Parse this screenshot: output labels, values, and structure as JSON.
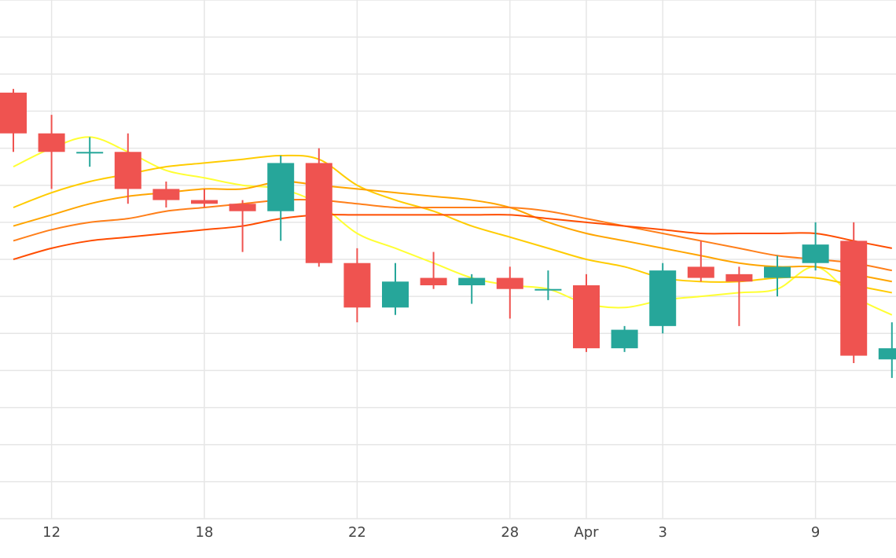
{
  "chart_data": {
    "type": "candlestick",
    "title": "",
    "xlabel": "",
    "ylabel": "",
    "x_ticks": [
      {
        "label": "12",
        "index": 1
      },
      {
        "label": "18",
        "index": 5
      },
      {
        "label": "22",
        "index": 9
      },
      {
        "label": "28",
        "index": 13
      },
      {
        "label": "Apr",
        "index": 15
      },
      {
        "label": "3",
        "index": 17
      },
      {
        "label": "9",
        "index": 21
      }
    ],
    "grid": true,
    "ylim": [
      0,
      14
    ],
    "colors": {
      "up": "#26a69a",
      "down": "#ef5350",
      "grid": "#e6e6e6",
      "ma_lines": [
        "#ffff33",
        "#ffcc00",
        "#ffa500",
        "#ff7f1a",
        "#ff4d00"
      ]
    },
    "candles": [
      {
        "open": 11.5,
        "high": 11.6,
        "low": 9.9,
        "close": 10.4
      },
      {
        "open": 10.4,
        "high": 10.9,
        "low": 8.9,
        "close": 9.9
      },
      {
        "open": 9.9,
        "high": 10.3,
        "low": 9.5,
        "close": 9.9
      },
      {
        "open": 9.9,
        "high": 10.4,
        "low": 8.5,
        "close": 8.9
      },
      {
        "open": 8.9,
        "high": 9.1,
        "low": 8.4,
        "close": 8.6
      },
      {
        "open": 8.6,
        "high": 8.9,
        "low": 8.4,
        "close": 8.5
      },
      {
        "open": 8.5,
        "high": 8.6,
        "low": 7.2,
        "close": 8.3
      },
      {
        "open": 8.3,
        "high": 9.8,
        "low": 7.5,
        "close": 9.6
      },
      {
        "open": 9.6,
        "high": 10.0,
        "low": 6.8,
        "close": 6.9
      },
      {
        "open": 6.9,
        "high": 7.3,
        "low": 5.3,
        "close": 5.7
      },
      {
        "open": 5.7,
        "high": 6.9,
        "low": 5.5,
        "close": 6.4
      },
      {
        "open": 6.5,
        "high": 7.2,
        "low": 6.2,
        "close": 6.3
      },
      {
        "open": 6.3,
        "high": 6.6,
        "low": 5.8,
        "close": 6.5
      },
      {
        "open": 6.5,
        "high": 6.8,
        "low": 5.4,
        "close": 6.2
      },
      {
        "open": 6.2,
        "high": 6.7,
        "low": 5.9,
        "close": 6.2
      },
      {
        "open": 6.3,
        "high": 6.6,
        "low": 4.5,
        "close": 4.6
      },
      {
        "open": 4.6,
        "high": 5.2,
        "low": 4.5,
        "close": 5.1
      },
      {
        "open": 5.2,
        "high": 6.9,
        "low": 5.0,
        "close": 6.7
      },
      {
        "open": 6.8,
        "high": 7.5,
        "low": 6.4,
        "close": 6.5
      },
      {
        "open": 6.6,
        "high": 6.8,
        "low": 5.2,
        "close": 6.4
      },
      {
        "open": 6.5,
        "high": 7.1,
        "low": 6.0,
        "close": 6.8
      },
      {
        "open": 6.9,
        "high": 8.0,
        "low": 6.7,
        "close": 7.4
      },
      {
        "open": 7.5,
        "high": 8.0,
        "low": 4.2,
        "close": 4.4
      },
      {
        "open": 4.3,
        "high": 5.3,
        "low": 3.8,
        "close": 4.6
      }
    ],
    "series": [
      {
        "values": [
          9.5,
          10.0,
          10.3,
          9.9,
          9.4,
          9.2,
          9.0,
          8.9,
          8.5,
          7.7,
          7.3,
          6.9,
          6.5,
          6.3,
          6.2,
          5.8,
          5.7,
          5.9,
          6.0,
          6.1,
          6.2,
          6.8,
          6.0,
          5.5
        ]
      },
      {
        "values": [
          8.4,
          8.8,
          9.1,
          9.3,
          9.5,
          9.6,
          9.7,
          9.8,
          9.7,
          9.0,
          8.6,
          8.3,
          7.9,
          7.6,
          7.3,
          7.0,
          6.8,
          6.5,
          6.4,
          6.4,
          6.5,
          6.5,
          6.3,
          6.1
        ]
      },
      {
        "values": [
          7.9,
          8.2,
          8.5,
          8.7,
          8.8,
          8.9,
          8.9,
          9.1,
          9.0,
          8.9,
          8.8,
          8.7,
          8.6,
          8.4,
          8.0,
          7.7,
          7.5,
          7.3,
          7.1,
          6.9,
          6.8,
          6.8,
          6.6,
          6.4
        ]
      },
      {
        "values": [
          7.5,
          7.8,
          8.0,
          8.1,
          8.3,
          8.4,
          8.5,
          8.6,
          8.6,
          8.5,
          8.4,
          8.4,
          8.4,
          8.4,
          8.3,
          8.1,
          7.9,
          7.7,
          7.5,
          7.3,
          7.1,
          7.0,
          6.9,
          6.7
        ]
      },
      {
        "values": [
          7.0,
          7.3,
          7.5,
          7.6,
          7.7,
          7.8,
          7.9,
          8.1,
          8.2,
          8.2,
          8.2,
          8.2,
          8.2,
          8.2,
          8.1,
          8.0,
          7.9,
          7.8,
          7.7,
          7.7,
          7.7,
          7.7,
          7.5,
          7.3
        ]
      }
    ]
  }
}
